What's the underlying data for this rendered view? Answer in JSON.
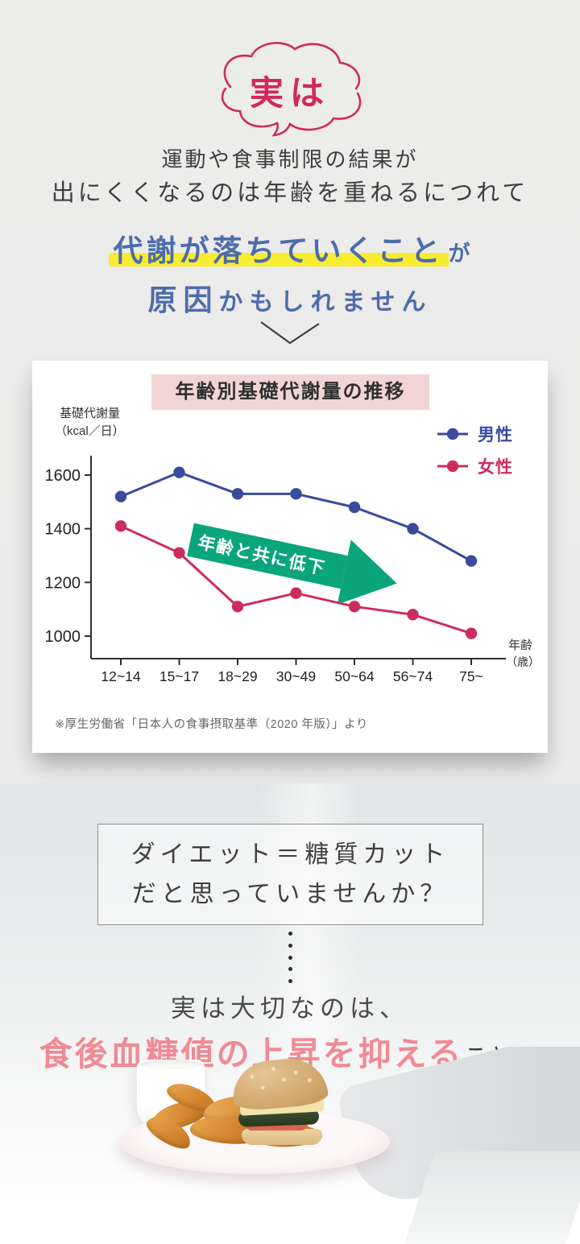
{
  "intro": {
    "bubble_text": "実は",
    "line1": "運動や食事制限の結果が",
    "line2": "出にくくなるのは年齢を重ねるにつれて",
    "emphasis": "代謝が落ちていくこと",
    "emphasis_suffix": "が",
    "conclusion_strong": "原因",
    "conclusion_rest": "かもしれません",
    "accent_crimson": "#d0295b",
    "accent_blue": "#4d6cab",
    "highlight_yellow": "#f8ec30"
  },
  "chart_card": {
    "note": "※厚生労働省「日本人の食事摂取基準（2020 年版）」より"
  },
  "chart_data": {
    "type": "line",
    "title": "年齢別基礎代謝量の推移",
    "ylabel_line1": "基礎代謝量",
    "ylabel_line2": "（kcal／日）",
    "xlabel_line1": "年齢",
    "xlabel_line2": "（歳）",
    "categories": [
      "12~14",
      "15~17",
      "18~29",
      "30~49",
      "50~64",
      "56~74",
      "75~"
    ],
    "yticks": [
      1000,
      1200,
      1400,
      1600
    ],
    "ylim": [
      930,
      1680
    ],
    "grid": false,
    "legend_position": "top-right",
    "series": [
      {
        "name": "男性",
        "color": "#3a4b9e",
        "values": [
          1520,
          1610,
          1530,
          1530,
          1480,
          1400,
          1280
        ]
      },
      {
        "name": "女性",
        "color": "#cb2e5d",
        "values": [
          1410,
          1310,
          1110,
          1160,
          1110,
          1080,
          1010
        ]
      }
    ],
    "annotation": {
      "text": "年齢と共に低下",
      "color": "#0aa57d",
      "text_color": "#ffffff"
    }
  },
  "question": {
    "line1": "ダイエット＝糖質カット",
    "line2": "だと思っていませんか？"
  },
  "answer": {
    "lead": "実は大切なのは、",
    "emphasis": "食後血糖値の上昇を抑える",
    "suffix": "こと！",
    "emphasis_color": "#f08a94"
  }
}
